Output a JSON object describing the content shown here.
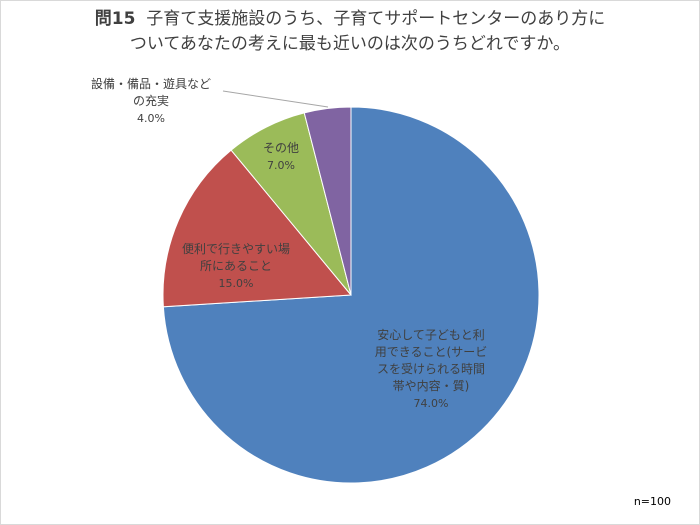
{
  "chart_data": {
    "type": "pie",
    "title_prefix": "問15",
    "title_line1": "子育て支援施設のうち、子育てサポートセンターのあり方に",
    "title_line2": "ついてあなたの考えに最も近いのは次のうちどれですか。",
    "categories": [
      "安心して子どもと利用できること(サービスを受けられる時間帯や内容・質)",
      "便利で行きやすい場所にあること",
      "その他",
      "設備・備品・遊具などの充実"
    ],
    "values": [
      74.0,
      15.0,
      7.0,
      4.0
    ],
    "colors": [
      "#4f81bd",
      "#c0504d",
      "#9bbb59",
      "#8064a2"
    ],
    "sample_note": "n=100",
    "legend": "none (data labels on slices)"
  },
  "labels": {
    "blue": {
      "lines": [
        "安心して子どもと利",
        "用できること(サービ",
        "スを受けられる時間",
        "帯や内容・質)"
      ],
      "pct": "74.0%"
    },
    "red": {
      "lines": [
        "便利で行きやすい場",
        "所にあること"
      ],
      "pct": "15.0%"
    },
    "green": {
      "lines": [
        "その他"
      ],
      "pct": "7.0%"
    },
    "purple": {
      "lines": [
        "設備・備品・遊具など",
        "の充実"
      ],
      "pct": "4.0%"
    }
  }
}
